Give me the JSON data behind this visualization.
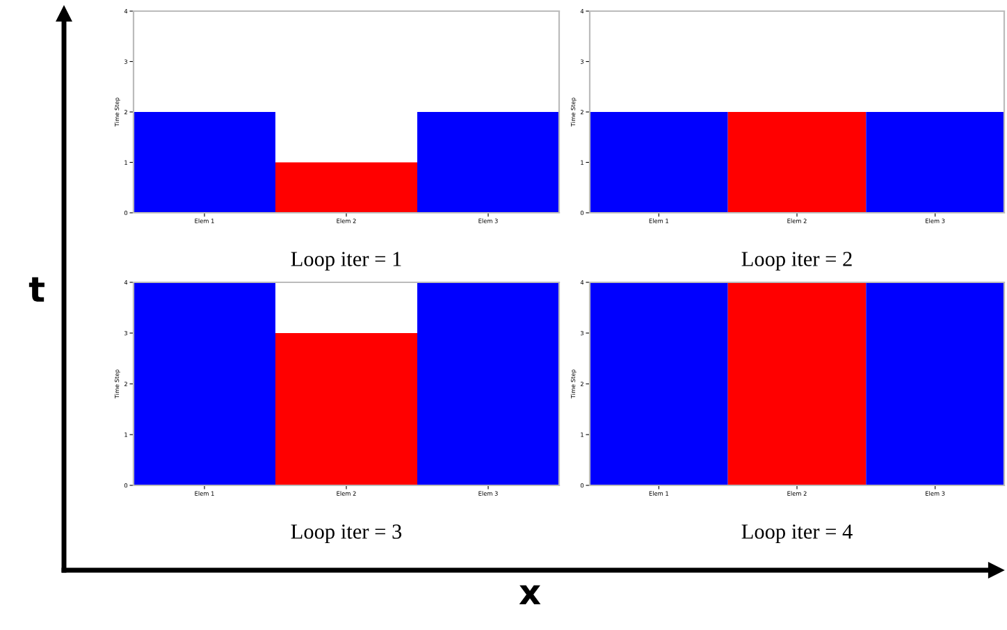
{
  "chart_data": [
    {
      "type": "bar",
      "categories": [
        "Elem 1",
        "Elem 2",
        "Elem 3"
      ],
      "values": [
        2,
        1,
        2
      ],
      "colors": [
        "#0000ff",
        "#ff0000",
        "#0000ff"
      ],
      "ylabel": "Time Step",
      "xlabel": "Loop iter = 1",
      "ylim": [
        0,
        4
      ],
      "yticks": [
        0,
        1,
        2,
        3,
        4
      ]
    },
    {
      "type": "bar",
      "categories": [
        "Elem 1",
        "Elem 2",
        "Elem 3"
      ],
      "values": [
        2,
        2,
        2
      ],
      "colors": [
        "#0000ff",
        "#ff0000",
        "#0000ff"
      ],
      "ylabel": "Time Step",
      "xlabel": "Loop iter = 2",
      "ylim": [
        0,
        4
      ],
      "yticks": [
        0,
        1,
        2,
        3,
        4
      ]
    },
    {
      "type": "bar",
      "categories": [
        "Elem 1",
        "Elem 2",
        "Elem 3"
      ],
      "values": [
        4,
        3,
        4
      ],
      "colors": [
        "#0000ff",
        "#ff0000",
        "#0000ff"
      ],
      "ylabel": "Time Step",
      "xlabel": "Loop iter = 3",
      "ylim": [
        0,
        4
      ],
      "yticks": [
        0,
        1,
        2,
        3,
        4
      ]
    },
    {
      "type": "bar",
      "categories": [
        "Elem 1",
        "Elem 2",
        "Elem 3"
      ],
      "values": [
        4,
        4,
        4
      ],
      "colors": [
        "#0000ff",
        "#ff0000",
        "#0000ff"
      ],
      "ylabel": "Time Step",
      "xlabel": "Loop iter = 4",
      "ylim": [
        0,
        4
      ],
      "yticks": [
        0,
        1,
        2,
        3,
        4
      ]
    },
    {
      "type": "other",
      "xlabel": "x",
      "ylabel": "t"
    }
  ]
}
